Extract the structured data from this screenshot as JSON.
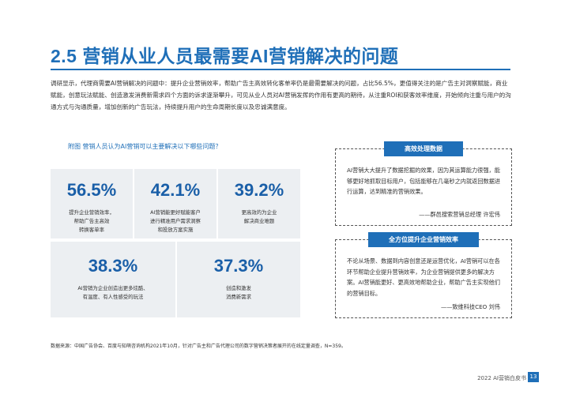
{
  "header": {
    "title": "2.5 营销从业人员最需要AI营销解决的问题"
  },
  "intro": "调研显示，代理商需要AI营销解决的问题中：提升企业营销效率，帮助广告主高效转化客单率仍是最需要解决的问题，占比56.5%，更值得关注的是广告主对洞察赋能，商业赋能，创意玩法赋能、创造激发消费新需求四个方面的诉求逐渐攀升，可见从业人员对AI营销发挥的作用有更高的期待，从注重ROI和获客效率维度，开始倾向注重与用户的沟通方式与沟通质量，增加创新的广告玩法，持续提升用户的生命周期长度以及忠诚满意度。",
  "figure": {
    "title": "附图 营销人员认为AI营销可以主要解决以下哪些问题？",
    "stats": [
      {
        "value": "56.5%",
        "desc_line1": "提升企业营销效率，",
        "desc_line2": "帮助广告主高效",
        "desc_line3": "转换客单率"
      },
      {
        "value": "42.1%",
        "desc_line1": "AI营销能更好赋能客户",
        "desc_line2": "进行精准用户需求洞察",
        "desc_line3": "和投放方案实施"
      },
      {
        "value": "39.2%",
        "desc_line1": "更高效的为企业",
        "desc_line2": "解决商业难题",
        "desc_line3": ""
      },
      {
        "value": "38.3%",
        "desc_line1": "AI营销为企业创造出更多炫酷、",
        "desc_line2": "有温度、有人性感受的玩法",
        "desc_line3": ""
      },
      {
        "value": "37.3%",
        "desc_line1": "创造和激发",
        "desc_line2": "消费新需求",
        "desc_line3": ""
      }
    ]
  },
  "cards": [
    {
      "tab": "高效处理数据",
      "body": "AI营销大大提升了数据挖掘的效果，因为其运算能力很强，能够更好地抓取目标用户，包括能够在几毫秒之内就返回数据进行运算，达到精准的营销效果。",
      "signature": "——群邑搜索营销总经理 许宏伟"
    },
    {
      "tab": "全方位提升企业营销效率",
      "body": "不论从场景、数据到内容创意还是运营优化，AI营销可以在各环节帮助企业提升营销效率，为企业营销提供更多的解决方案。AI营销能更好、更高效地帮助企业，帮助广告主实现他们的营销目标。",
      "signature": "——致维科技CEO 刘伟"
    }
  ],
  "source": "数据来源：中国广告协会、百度与知萌咨询机构2021年10月，针对广告主和广告代理公司的数字营销决策者展开的在线定量调查，N=359。",
  "footer": {
    "text": "2022 AI营销白皮书",
    "page": "13"
  }
}
